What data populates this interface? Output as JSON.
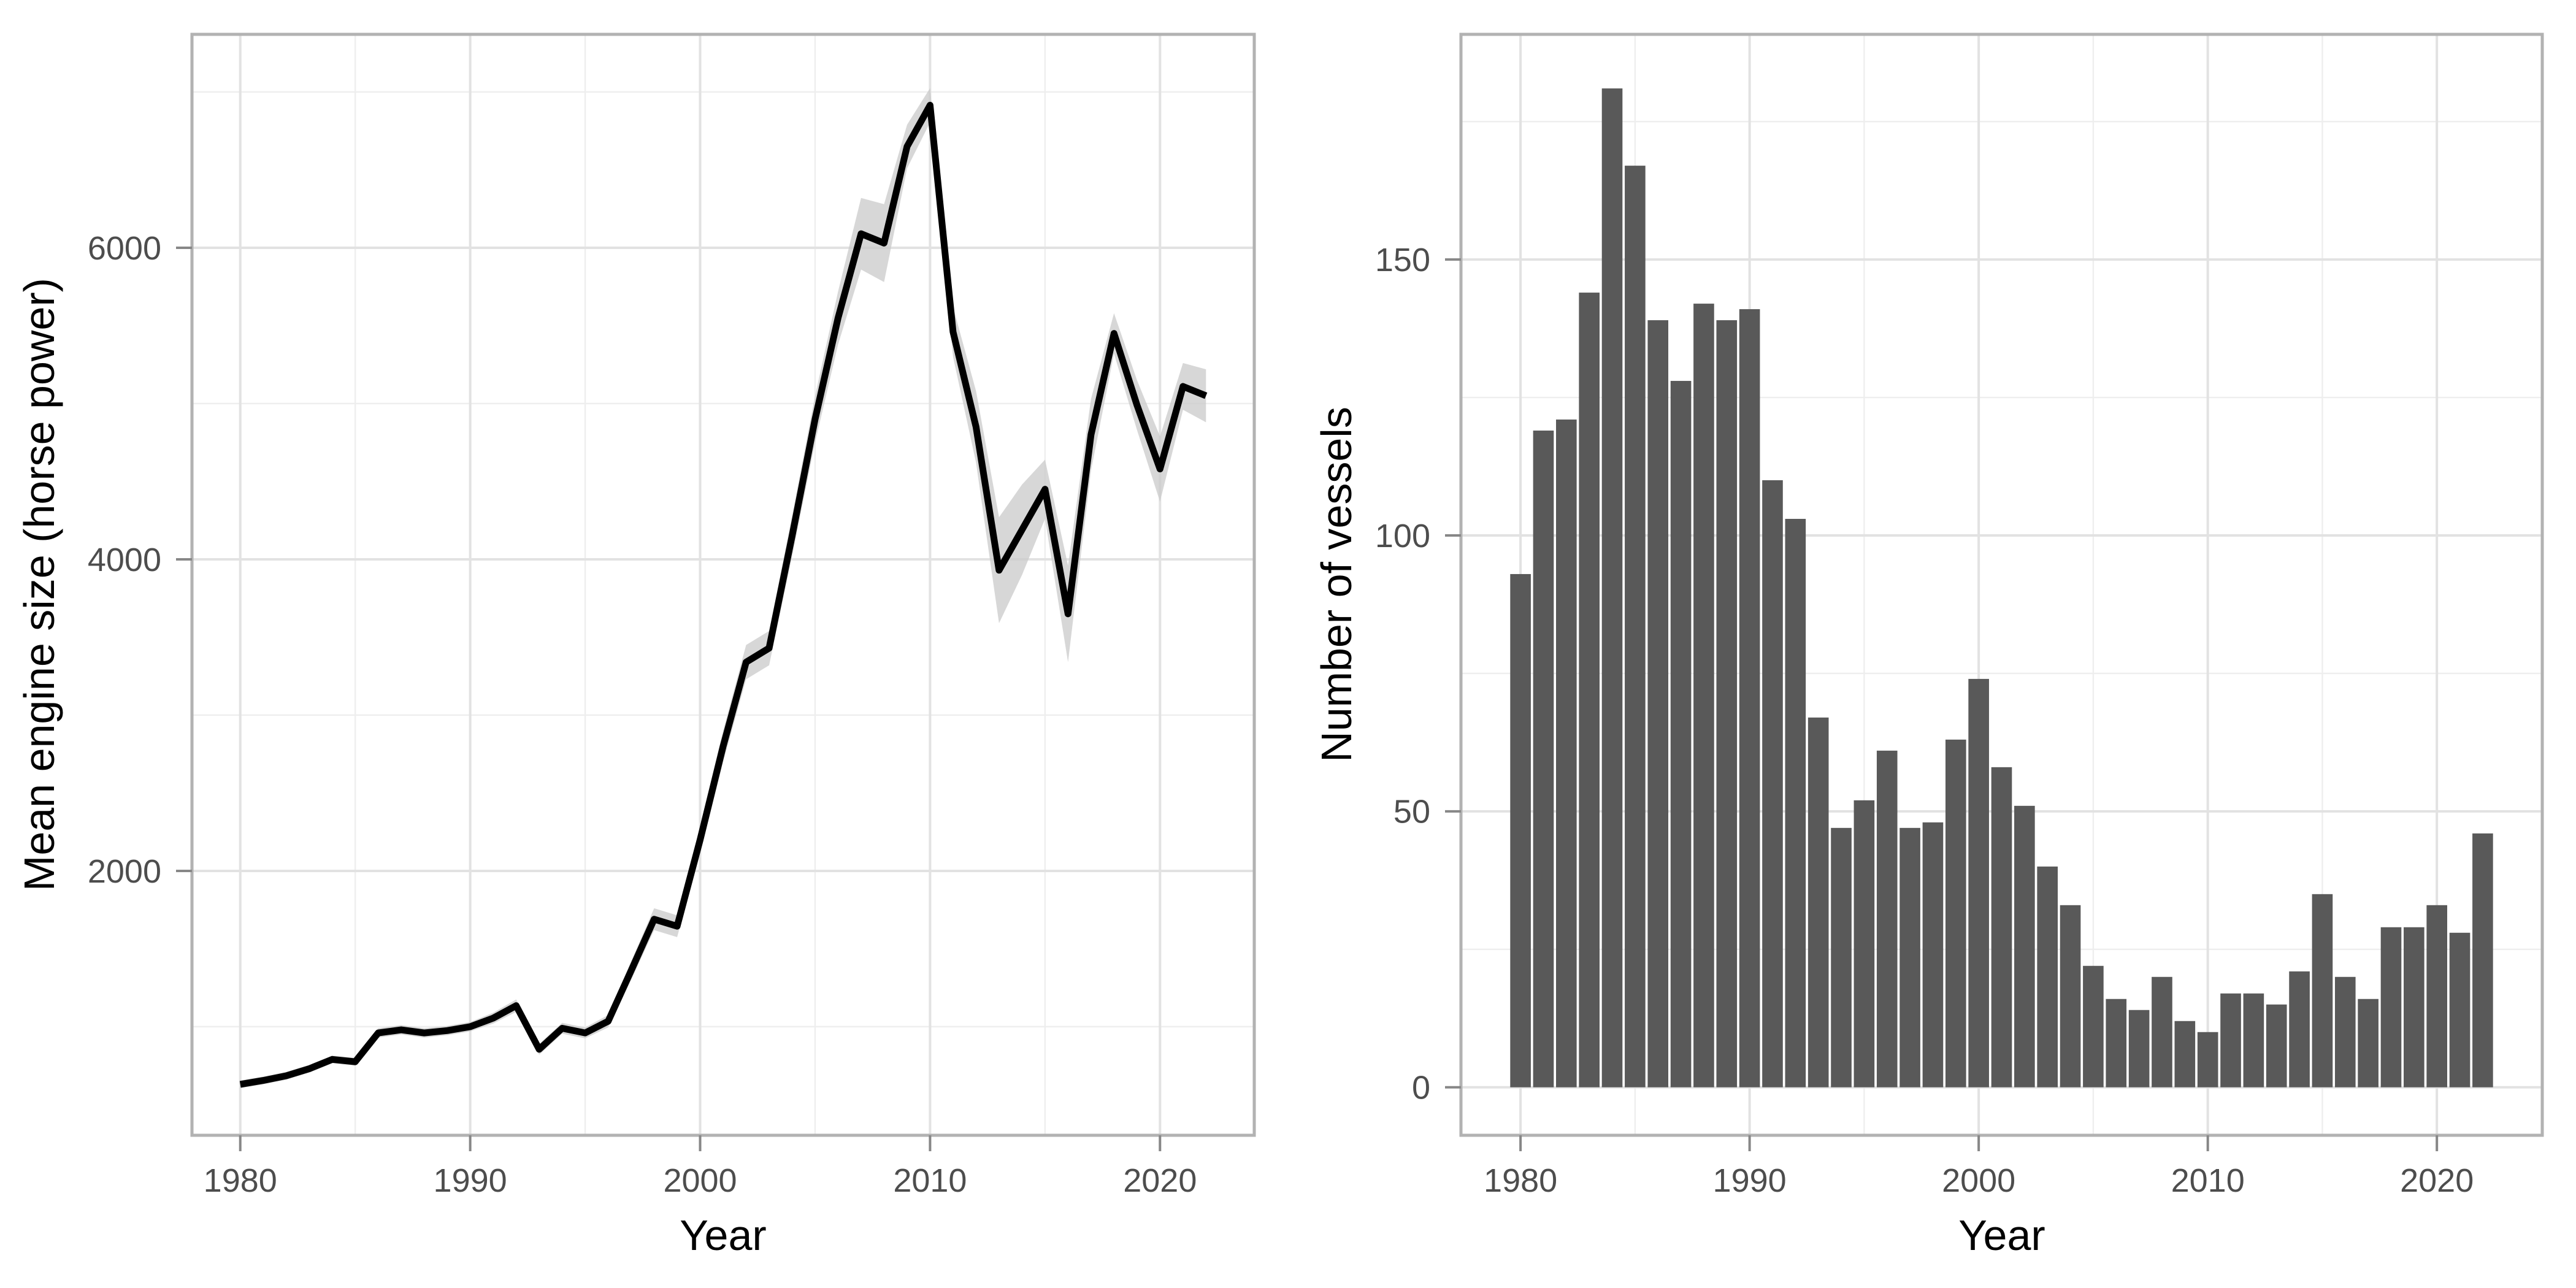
{
  "chart_data": [
    {
      "type": "line",
      "title": "",
      "xlabel": "Year",
      "ylabel": "Mean engine size (horse power)",
      "x_ticks": [
        1980,
        1990,
        2000,
        2010,
        2020
      ],
      "x_minor": [
        1985,
        1995,
        2005,
        2015
      ],
      "y_ticks": [
        2000,
        4000,
        6000
      ],
      "y_minor": [
        1000,
        3000,
        5000,
        7000
      ],
      "xlim": [
        1977.9,
        2024.1
      ],
      "ylim": [
        303,
        7370
      ],
      "grid": "on",
      "legend": "none",
      "years": [
        1980,
        1981,
        1982,
        1983,
        1984,
        1985,
        1986,
        1987,
        1988,
        1989,
        1990,
        1991,
        1992,
        1993,
        1994,
        1995,
        1996,
        1997,
        1998,
        1999,
        2000,
        2001,
        2002,
        2003,
        2004,
        2005,
        2006,
        2007,
        2008,
        2009,
        2010,
        2011,
        2012,
        2013,
        2014,
        2015,
        2016,
        2017,
        2018,
        2019,
        2020,
        2021,
        2022
      ],
      "values": [
        630,
        655,
        685,
        730,
        790,
        775,
        960,
        980,
        960,
        975,
        1000,
        1055,
        1135,
        855,
        990,
        960,
        1035,
        1360,
        1690,
        1645,
        2200,
        2800,
        3340,
        3430,
        4150,
        4900,
        5550,
        6090,
        6030,
        6650,
        6915,
        5460,
        4850,
        3930,
        4190,
        4450,
        3650,
        4800,
        5450,
        4990,
        4580,
        5110,
        5050
      ],
      "ribbon_offsets": [
        25,
        25,
        25,
        25,
        25,
        25,
        30,
        30,
        30,
        30,
        30,
        35,
        40,
        35,
        35,
        35,
        40,
        60,
        70,
        70,
        90,
        100,
        110,
        110,
        130,
        150,
        170,
        230,
        250,
        140,
        110,
        160,
        230,
        340,
        290,
        190,
        310,
        230,
        130,
        160,
        210,
        150,
        170
      ]
    },
    {
      "type": "bar",
      "title": "",
      "xlabel": "Year",
      "ylabel": "Number of vessels",
      "x_ticks": [
        1980,
        1990,
        2000,
        2010,
        2020
      ],
      "x_minor": [
        1985,
        1995,
        2005,
        2015
      ],
      "y_ticks": [
        0,
        50,
        100,
        150
      ],
      "y_minor": [
        25,
        75,
        125,
        175
      ],
      "xlim": [
        1977.4,
        2024.6
      ],
      "ylim": [
        -8.7,
        190.8
      ],
      "grid": "on",
      "legend": "none",
      "bar_width_years": 0.9,
      "years": [
        1980,
        1981,
        1982,
        1983,
        1984,
        1985,
        1986,
        1987,
        1988,
        1989,
        1990,
        1991,
        1992,
        1993,
        1994,
        1995,
        1996,
        1997,
        1998,
        1999,
        2000,
        2001,
        2002,
        2003,
        2004,
        2005,
        2006,
        2007,
        2008,
        2009,
        2010,
        2011,
        2012,
        2013,
        2014,
        2015,
        2016,
        2017,
        2018,
        2019,
        2020,
        2021,
        2022
      ],
      "values": [
        93,
        119,
        121,
        144,
        181,
        167,
        139,
        128,
        142,
        139,
        141,
        110,
        103,
        67,
        47,
        52,
        61,
        47,
        48,
        63,
        74,
        58,
        51,
        40,
        33,
        22,
        16,
        14,
        20,
        12,
        10,
        17,
        17,
        15,
        21,
        35,
        20,
        16,
        29,
        29,
        33,
        28,
        46
      ]
    }
  ],
  "colors": {
    "line": "#000000",
    "ribbon": "#c9c9c9",
    "bar_fill": "#595959",
    "grid_major": "#e2e2e2",
    "grid_minor": "#eeeeee",
    "panel_border": "#b2b2b2",
    "tick_mark": "#878787",
    "tick_text": "#4d4d4d",
    "axis_title_text": "#000000",
    "background": "#ffffff"
  }
}
